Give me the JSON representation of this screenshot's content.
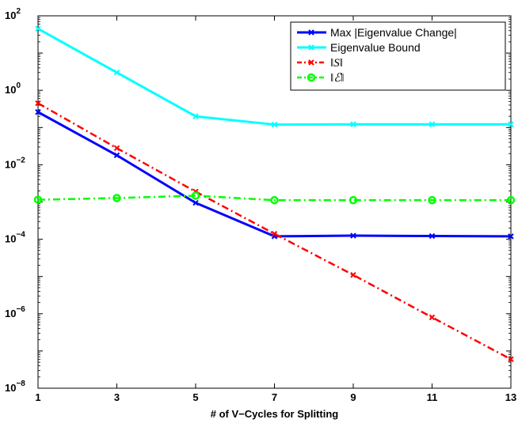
{
  "chart_data": {
    "type": "line",
    "xlabel": "# of V−Cycles for Splitting",
    "ylabel": "",
    "yscale": "log",
    "xlim": [
      1,
      13
    ],
    "ylim": [
      1e-08,
      100
    ],
    "xticks": [
      1,
      3,
      5,
      7,
      9,
      11,
      13
    ],
    "yticks": [
      {
        "value": 1e-08,
        "base": "10",
        "exp": "−8"
      },
      {
        "value": 1e-06,
        "base": "10",
        "exp": "−6"
      },
      {
        "value": 0.0001,
        "base": "10",
        "exp": "−4"
      },
      {
        "value": 0.01,
        "base": "10",
        "exp": "−2"
      },
      {
        "value": 1,
        "base": "10",
        "exp": "0"
      },
      {
        "value": 100,
        "base": "10",
        "exp": "2"
      }
    ],
    "legend_position": "top-right",
    "grid": false,
    "x": [
      1,
      3,
      5,
      7,
      9,
      11,
      13
    ],
    "series": [
      {
        "name": "Max |Eigenvalue Change|",
        "color": "#0000ff",
        "dash": "solid",
        "marker": "x",
        "values": [
          0.26,
          0.018,
          0.00095,
          0.00012,
          0.000125,
          0.000122,
          0.00012
        ]
      },
      {
        "name": "Eigenvalue Bound",
        "color": "#00ffff",
        "dash": "solid",
        "marker": "x",
        "values": [
          45,
          3,
          0.2,
          0.12,
          0.122,
          0.122,
          0.122
        ]
      },
      {
        "name": "‖S‖",
        "color": "#ff0000",
        "dash": "dashdot",
        "marker": "x",
        "values": [
          0.45,
          0.028,
          0.0019,
          0.00014,
          1.1e-05,
          8e-07,
          6e-08
        ]
      },
      {
        "name": "‖ℰ‖",
        "color": "#00ff00",
        "dash": "dashdot",
        "marker": "o",
        "values": [
          0.00115,
          0.00128,
          0.00148,
          0.00112,
          0.00112,
          0.00112,
          0.00112
        ]
      }
    ]
  }
}
